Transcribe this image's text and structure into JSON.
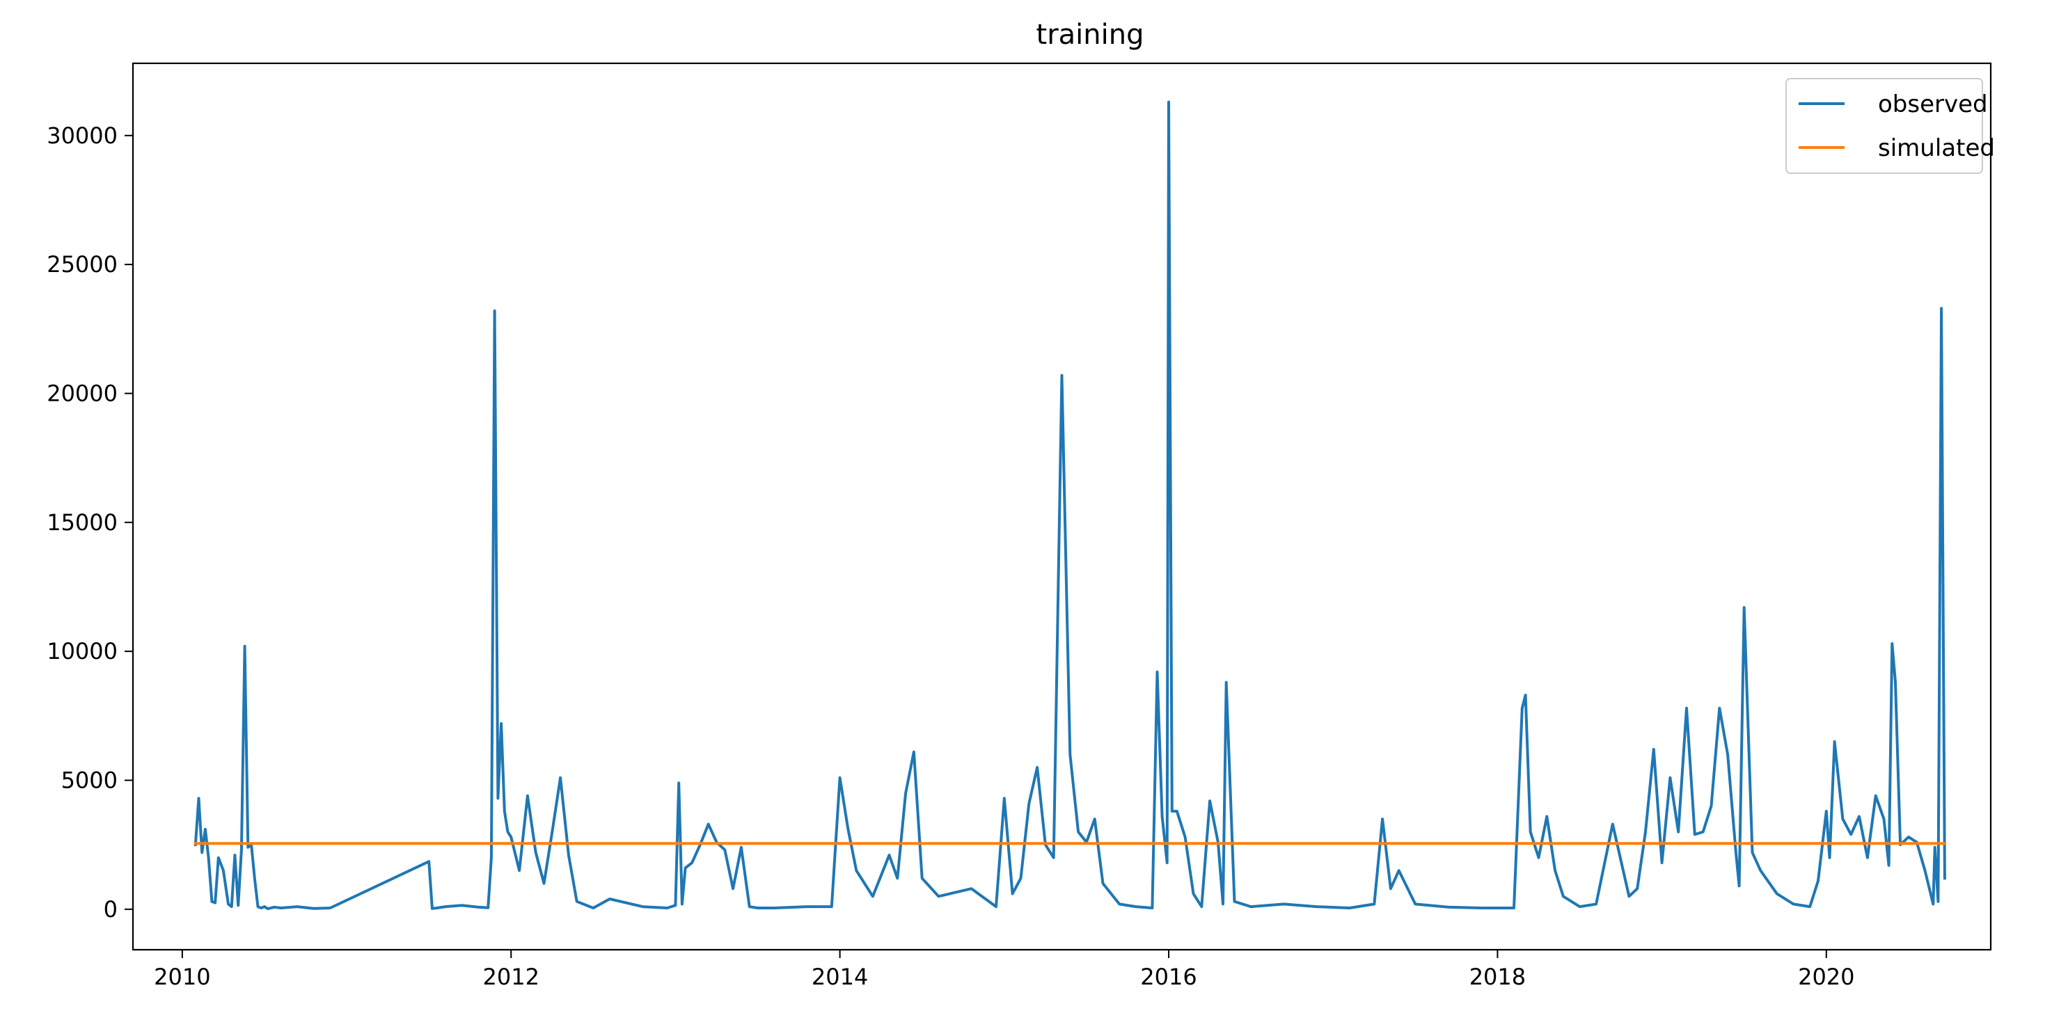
{
  "chart_data": {
    "type": "line",
    "title": "training",
    "xlabel": "",
    "ylabel": "",
    "xlim": [
      2009.7,
      2021.0
    ],
    "ylim": [
      -1570,
      32800
    ],
    "xticks": [
      "2010",
      "2012",
      "2014",
      "2016",
      "2018",
      "2020"
    ],
    "yticks": [
      "0",
      "5000",
      "10000",
      "15000",
      "20000",
      "25000",
      "30000"
    ],
    "legend_position": "upper right",
    "grid": false,
    "series": [
      {
        "name": "observed",
        "color": "#1f77b4",
        "x": [
          2010.08,
          2010.1,
          2010.12,
          2010.14,
          2010.16,
          2010.18,
          2010.2,
          2010.22,
          2010.25,
          2010.28,
          2010.3,
          2010.32,
          2010.34,
          2010.36,
          2010.38,
          2010.4,
          2010.42,
          2010.44,
          2010.46,
          2010.48,
          2010.5,
          2010.52,
          2010.56,
          2010.6,
          2010.7,
          2010.8,
          2010.9,
          2011.5,
          2011.52,
          2011.55,
          2011.6,
          2011.7,
          2011.8,
          2011.86,
          2011.88,
          2011.9,
          2011.92,
          2011.94,
          2011.96,
          2011.98,
          2012.0,
          2012.05,
          2012.1,
          2012.15,
          2012.2,
          2012.25,
          2012.3,
          2012.35,
          2012.4,
          2012.5,
          2012.6,
          2012.8,
          2012.95,
          2013.0,
          2013.02,
          2013.04,
          2013.06,
          2013.1,
          2013.15,
          2013.2,
          2013.25,
          2013.3,
          2013.35,
          2013.4,
          2013.45,
          2013.5,
          2013.6,
          2013.8,
          2013.95,
          2014.0,
          2014.05,
          2014.1,
          2014.2,
          2014.3,
          2014.35,
          2014.4,
          2014.45,
          2014.5,
          2014.6,
          2014.8,
          2014.95,
          2015.0,
          2015.05,
          2015.1,
          2015.15,
          2015.2,
          2015.25,
          2015.3,
          2015.35,
          2015.4,
          2015.45,
          2015.5,
          2015.55,
          2015.6,
          2015.7,
          2015.8,
          2015.9,
          2015.93,
          2015.96,
          2015.99,
          2016.0,
          2016.02,
          2016.05,
          2016.1,
          2016.15,
          2016.2,
          2016.25,
          2016.3,
          2016.33,
          2016.35,
          2016.4,
          2016.5,
          2016.7,
          2016.9,
          2017.1,
          2017.25,
          2017.3,
          2017.35,
          2017.4,
          2017.5,
          2017.7,
          2017.9,
          2018.1,
          2018.15,
          2018.17,
          2018.2,
          2018.25,
          2018.3,
          2018.35,
          2018.4,
          2018.5,
          2018.6,
          2018.7,
          2018.8,
          2018.85,
          2018.9,
          2018.95,
          2019.0,
          2019.05,
          2019.1,
          2019.15,
          2019.2,
          2019.25,
          2019.3,
          2019.35,
          2019.4,
          2019.45,
          2019.47,
          2019.5,
          2019.55,
          2019.6,
          2019.7,
          2019.8,
          2019.9,
          2019.95,
          2020.0,
          2020.02,
          2020.05,
          2020.1,
          2020.15,
          2020.2,
          2020.25,
          2020.3,
          2020.35,
          2020.38,
          2020.4,
          2020.42,
          2020.45,
          2020.5,
          2020.55,
          2020.6,
          2020.65,
          2020.66,
          2020.68,
          2020.7,
          2020.72
        ],
        "y": [
          2500,
          4300,
          2200,
          3100,
          2000,
          300,
          250,
          2000,
          1500,
          200,
          100,
          2100,
          150,
          2300,
          10200,
          2400,
          2500,
          1200,
          100,
          50,
          100,
          20,
          80,
          50,
          100,
          30,
          50,
          1850,
          30,
          50,
          100,
          150,
          80,
          60,
          2000,
          23200,
          4300,
          7200,
          3800,
          3000,
          2800,
          1500,
          4400,
          2200,
          1000,
          3000,
          5100,
          2100,
          300,
          50,
          400,
          100,
          50,
          150,
          4900,
          200,
          1600,
          1800,
          2500,
          3300,
          2600,
          2300,
          800,
          2400,
          100,
          50,
          50,
          100,
          100,
          5100,
          3100,
          1500,
          500,
          2100,
          1200,
          4500,
          6100,
          1200,
          500,
          800,
          100,
          4300,
          600,
          1200,
          4100,
          5500,
          2500,
          2000,
          20700,
          6000,
          3000,
          2600,
          3500,
          1000,
          200,
          100,
          50,
          9200,
          3600,
          1800,
          31300,
          3800,
          3800,
          2800,
          600,
          100,
          4200,
          2600,
          200,
          8800,
          300,
          100,
          200,
          100,
          50,
          200,
          3500,
          800,
          1500,
          200,
          80,
          50,
          50,
          7800,
          8300,
          3000,
          2000,
          3600,
          1500,
          500,
          100,
          200,
          3300,
          500,
          800,
          3000,
          6200,
          1800,
          5100,
          3000,
          7800,
          2900,
          3000,
          4000,
          7800,
          6000,
          2200,
          900,
          11700,
          2200,
          1500,
          600,
          200,
          100,
          1100,
          3800,
          2000,
          6500,
          3500,
          2900,
          3600,
          2000,
          4400,
          3500,
          1700,
          10300,
          8800,
          2500,
          2800,
          2600,
          1500,
          200,
          2400,
          300,
          23300,
          1200
        ]
      },
      {
        "name": "simulated",
        "color": "#ff7f0e",
        "x": [
          2010.08,
          2020.72
        ],
        "y": [
          2550,
          2550
        ]
      }
    ]
  }
}
